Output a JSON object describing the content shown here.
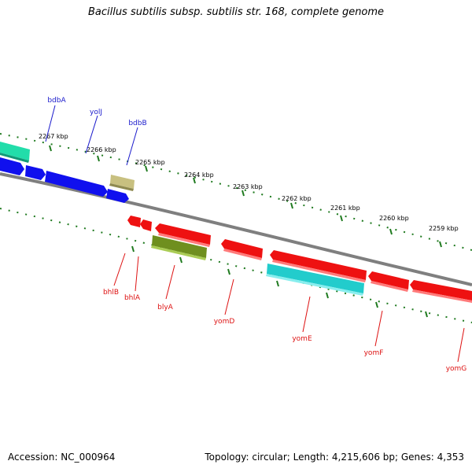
{
  "title": "Bacillus subtilis subsp. subtilis str. 168, complete genome",
  "footer": {
    "accession": "Accession: NC_000964",
    "summary": "Topology: circular; Length: 4,215,606 bp; Genes: 4,353"
  },
  "colors": {
    "backbone": "#888888",
    "tick": "#1f7a1f",
    "forward_label": "#1a1acc",
    "reverse_label": "#dd1111"
  },
  "ruler": [
    {
      "label": "2267 kbp"
    },
    {
      "label": "2266 kbp"
    },
    {
      "label": "2265 kbp"
    },
    {
      "label": "2264 kbp"
    },
    {
      "label": "2263 kbp"
    },
    {
      "label": "2262 kbp"
    },
    {
      "label": "2261 kbp"
    },
    {
      "label": "2260 kbp"
    },
    {
      "label": "2259 kbp"
    }
  ],
  "gene_labels": {
    "forward": [
      "bdbA",
      "yolJ",
      "bdbB"
    ],
    "reverse": [
      "bhlB",
      "bhlA",
      "blyA",
      "yomD",
      "yomE",
      "yomF",
      "yomG"
    ]
  },
  "feature_colors": {
    "blue": "#1010ee",
    "teal": "#22ddaa",
    "khaki": "#c8c080",
    "red": "#ee1111",
    "olive": "#6f8f1f",
    "cyan": "#22cccc"
  }
}
